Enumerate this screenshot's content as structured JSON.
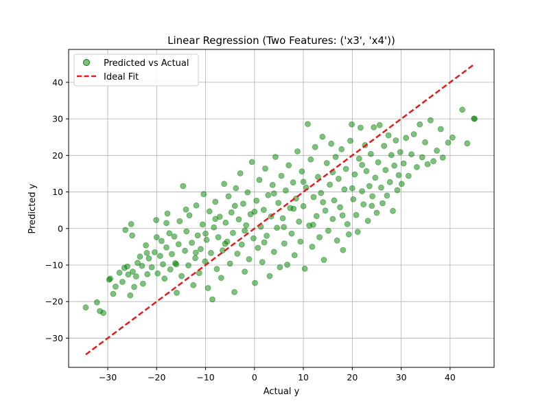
{
  "chart_data": {
    "type": "scatter",
    "title": "Linear Regression (Two Features: ('x3', 'x4'))",
    "xlabel": "Actual y",
    "ylabel": "Predicted y",
    "xlim": [
      -38,
      49
    ],
    "ylim": [
      -38,
      49
    ],
    "xticks": [
      -30,
      -20,
      -10,
      0,
      10,
      20,
      30,
      40
    ],
    "yticks": [
      -30,
      -20,
      -10,
      0,
      10,
      20,
      30,
      40
    ],
    "xtick_labels": [
      "−30",
      "−20",
      "−10",
      "0",
      "10",
      "20",
      "30",
      "40"
    ],
    "ytick_labels": [
      "−30",
      "−20",
      "−10",
      "0",
      "10",
      "20",
      "30",
      "40"
    ],
    "grid": true,
    "legend_position": "top-left",
    "series": [
      {
        "name": "Predicted vs Actual",
        "kind": "scatter",
        "color": "#008000",
        "alpha": 0.5,
        "points": [
          [
            -34.5,
            -21.6
          ],
          [
            -32.2,
            -20.2
          ],
          [
            -31.6,
            -22.6
          ],
          [
            -30.9,
            -23.1
          ],
          [
            -29.7,
            -14.0
          ],
          [
            -29.5,
            -13.7
          ],
          [
            -28.9,
            -17.9
          ],
          [
            -28.4,
            -15.9
          ],
          [
            -27.6,
            -12.1
          ],
          [
            -27.0,
            -14.6
          ],
          [
            -26.6,
            -10.8
          ],
          [
            -26.4,
            -0.4
          ],
          [
            -26.0,
            -10.4
          ],
          [
            -25.8,
            -12.6
          ],
          [
            -25.4,
            -18.3
          ],
          [
            -25.2,
            1.2
          ],
          [
            -25.0,
            -1.9
          ],
          [
            -24.9,
            -11.8
          ],
          [
            -24.6,
            -16.0
          ],
          [
            -24.2,
            -13.1
          ],
          [
            -23.9,
            -9.4
          ],
          [
            -23.4,
            -7.7
          ],
          [
            -23.0,
            -10.2
          ],
          [
            -22.8,
            -15.1
          ],
          [
            -22.2,
            -4.6
          ],
          [
            -21.9,
            -12.5
          ],
          [
            -21.6,
            -8.2
          ],
          [
            -21.0,
            -10.6
          ],
          [
            -20.4,
            -6.5
          ],
          [
            -20.1,
            2.3
          ],
          [
            -19.8,
            -12.3
          ],
          [
            -19.3,
            -7.5
          ],
          [
            -19.0,
            -3.4
          ],
          [
            -18.7,
            -9.8
          ],
          [
            -18.4,
            -13.7
          ],
          [
            -18.0,
            -5.2
          ],
          [
            -17.8,
            4.1
          ],
          [
            -17.4,
            -1.3
          ],
          [
            -17.2,
            -11.2
          ],
          [
            -16.9,
            -7.0
          ],
          [
            -16.4,
            -2.2
          ],
          [
            -16.2,
            -9.5
          ],
          [
            -15.9,
            -17.6
          ],
          [
            -15.5,
            -4.3
          ],
          [
            -15.3,
            2.0
          ],
          [
            -14.9,
            -13.0
          ],
          [
            -14.6,
            11.6
          ],
          [
            -14.2,
            -6.1
          ],
          [
            -13.9,
            -0.8
          ],
          [
            -13.5,
            -10.1
          ],
          [
            -13.3,
            3.6
          ],
          [
            -12.8,
            -3.9
          ],
          [
            -12.5,
            -15.5
          ],
          [
            -12.1,
            -8.1
          ],
          [
            -11.9,
            6.3
          ],
          [
            -11.6,
            -1.9
          ],
          [
            -11.3,
            -12.2
          ],
          [
            -11.0,
            -5.6
          ],
          [
            -10.6,
            1.1
          ],
          [
            -10.4,
            9.4
          ],
          [
            -10.1,
            -9.0
          ],
          [
            -9.8,
            -3.1
          ],
          [
            -9.5,
            -16.3
          ],
          [
            -9.2,
            4.7
          ],
          [
            -8.9,
            -6.7
          ],
          [
            -8.6,
            -19.4
          ],
          [
            -8.3,
            0.3
          ],
          [
            -8.0,
            7.3
          ],
          [
            -7.7,
            -11.1
          ],
          [
            -7.4,
            -2.4
          ],
          [
            -7.1,
            3.2
          ],
          [
            -6.8,
            -13.5
          ],
          [
            -6.5,
            -6.0
          ],
          [
            -6.2,
            12.2
          ],
          [
            -5.9,
            1.6
          ],
          [
            -5.6,
            -3.6
          ],
          [
            -5.3,
            8.8
          ],
          [
            -5.0,
            -9.6
          ],
          [
            -4.7,
            4.4
          ],
          [
            -4.4,
            -1.2
          ],
          [
            -4.1,
            -17.4
          ],
          [
            -3.8,
            11.0
          ],
          [
            -3.5,
            -6.9
          ],
          [
            -3.2,
            2.5
          ],
          [
            -2.9,
            15.1
          ],
          [
            -2.6,
            -4.4
          ],
          [
            -2.3,
            6.8
          ],
          [
            -2.0,
            -11.8
          ],
          [
            -1.7,
            0.9
          ],
          [
            -1.4,
            9.9
          ],
          [
            -1.1,
            -8.4
          ],
          [
            -0.8,
            3.9
          ],
          [
            -0.5,
            18.2
          ],
          [
            -0.2,
            -2.7
          ],
          [
            0.1,
            -14.9
          ],
          [
            0.4,
            7.6
          ],
          [
            0.7,
            -5.3
          ],
          [
            1.0,
            13.3
          ],
          [
            1.3,
            0.5
          ],
          [
            1.6,
            -9.2
          ],
          [
            1.9,
            5.1
          ],
          [
            2.2,
            16.4
          ],
          [
            2.5,
            -2.0
          ],
          [
            2.8,
            9.1
          ],
          [
            3.1,
            -13.0
          ],
          [
            3.4,
            3.3
          ],
          [
            3.7,
            11.9
          ],
          [
            4.0,
            -6.4
          ],
          [
            4.3,
            19.6
          ],
          [
            4.6,
            0.2
          ],
          [
            4.9,
            7.0
          ],
          [
            5.2,
            -10.6
          ],
          [
            5.5,
            14.4
          ],
          [
            5.8,
            2.8
          ],
          [
            6.1,
            -4.1
          ],
          [
            6.4,
            10.4
          ],
          [
            6.7,
            -9.9
          ],
          [
            7.0,
            17.3
          ],
          [
            7.3,
            5.6
          ],
          [
            7.6,
            -1.4
          ],
          [
            7.9,
            12.6
          ],
          [
            8.2,
            -7.3
          ],
          [
            8.5,
            8.2
          ],
          [
            8.8,
            21.1
          ],
          [
            9.1,
            1.9
          ],
          [
            9.4,
            -3.6
          ],
          [
            9.7,
            15.6
          ],
          [
            10.0,
            6.1
          ],
          [
            10.3,
            -11.0
          ],
          [
            10.6,
            11.2
          ],
          [
            10.9,
            28.6
          ],
          [
            11.2,
            0.8
          ],
          [
            11.5,
            18.9
          ],
          [
            11.8,
            -5.0
          ],
          [
            12.1,
            8.6
          ],
          [
            12.4,
            22.3
          ],
          [
            12.7,
            3.4
          ],
          [
            13.0,
            14.1
          ],
          [
            13.3,
            -2.4
          ],
          [
            13.6,
            9.7
          ],
          [
            13.9,
            25.1
          ],
          [
            14.2,
            -8.6
          ],
          [
            14.5,
            4.9
          ],
          [
            14.8,
            17.9
          ],
          [
            15.1,
            -0.6
          ],
          [
            15.4,
            12.0
          ],
          [
            15.7,
            23.2
          ],
          [
            16.0,
            2.6
          ],
          [
            16.3,
            7.7
          ],
          [
            16.6,
            19.6
          ],
          [
            16.9,
            -3.3
          ],
          [
            17.2,
            13.6
          ],
          [
            17.5,
            5.8
          ],
          [
            17.8,
            21.7
          ],
          [
            18.1,
            -5.9
          ],
          [
            18.4,
            10.7
          ],
          [
            18.7,
            16.3
          ],
          [
            19.0,
            1.2
          ],
          [
            19.3,
            -1.6
          ],
          [
            19.6,
            24.0
          ],
          [
            19.9,
            28.5
          ],
          [
            20.2,
            8.0
          ],
          [
            20.5,
            14.8
          ],
          [
            20.8,
            3.7
          ],
          [
            21.1,
            -0.9
          ],
          [
            21.4,
            19.1
          ],
          [
            21.7,
            27.6
          ],
          [
            22.0,
            10.2
          ],
          [
            22.3,
            6.6
          ],
          [
            22.6,
            22.8
          ],
          [
            22.9,
            15.7
          ],
          [
            23.2,
            2.1
          ],
          [
            23.5,
            11.6
          ],
          [
            23.8,
            20.4
          ],
          [
            24.1,
            8.8
          ],
          [
            24.4,
            27.7
          ],
          [
            24.7,
            13.9
          ],
          [
            25.0,
            4.3
          ],
          [
            25.3,
            18.1
          ],
          [
            25.6,
            28.3
          ],
          [
            25.9,
            11.2
          ],
          [
            26.2,
            6.9
          ],
          [
            26.5,
            22.6
          ],
          [
            26.8,
            16.0
          ],
          [
            27.1,
            9.0
          ],
          [
            27.4,
            25.5
          ],
          [
            27.7,
            12.7
          ],
          [
            28.0,
            20.1
          ],
          [
            28.3,
            4.8
          ],
          [
            28.6,
            17.2
          ],
          [
            28.9,
            24.1
          ],
          [
            29.2,
            10.5
          ],
          [
            29.5,
            14.6
          ],
          [
            29.8,
            20.9
          ],
          [
            30.1,
            12.2
          ],
          [
            30.5,
            17.8
          ],
          [
            31.0,
            24.8
          ],
          [
            31.5,
            14.4
          ],
          [
            32.1,
            20.3
          ],
          [
            32.6,
            25.8
          ],
          [
            33.2,
            16.8
          ],
          [
            33.8,
            28.5
          ],
          [
            34.3,
            19.5
          ],
          [
            34.9,
            23.6
          ],
          [
            35.4,
            17.6
          ],
          [
            36.0,
            29.6
          ],
          [
            36.6,
            18.4
          ],
          [
            37.3,
            21.3
          ],
          [
            38.1,
            27.2
          ],
          [
            38.5,
            19.4
          ],
          [
            39.6,
            23.5
          ],
          [
            40.5,
            24.9
          ],
          [
            42.5,
            32.5
          ],
          [
            43.5,
            23.3
          ],
          [
            45.0,
            30.0
          ],
          [
            44.9,
            30.1
          ],
          [
            -22.0,
            -6.7
          ],
          [
            -20.0,
            -2.4
          ],
          [
            -18.0,
            1.5
          ],
          [
            -16.0,
            -9.8
          ],
          [
            -14.0,
            5.2
          ],
          [
            -12.0,
            -6.6
          ],
          [
            -10.0,
            -1.4
          ],
          [
            -8.0,
            2.6
          ],
          [
            -6.0,
            -4.2
          ],
          [
            -4.0,
            6.2
          ],
          [
            -2.0,
            -0.6
          ],
          [
            0.0,
            4.6
          ],
          [
            2.0,
            -3.8
          ],
          [
            4.0,
            9.6
          ],
          [
            6.0,
            0.4
          ],
          [
            8.0,
            5.4
          ],
          [
            10.0,
            12.8
          ],
          [
            12.0,
            1.0
          ],
          [
            14.0,
            7.2
          ],
          [
            16.0,
            15.4
          ],
          [
            18.0,
            3.6
          ],
          [
            20.0,
            11.0
          ],
          [
            22.0,
            17.4
          ],
          [
            24.0,
            6.2
          ]
        ]
      },
      {
        "name": "Ideal Fit",
        "kind": "line",
        "color": "#e41a1c",
        "dashed": true,
        "points": [
          [
            -34.5,
            -34.5
          ],
          [
            45.0,
            45.0
          ]
        ]
      }
    ]
  }
}
